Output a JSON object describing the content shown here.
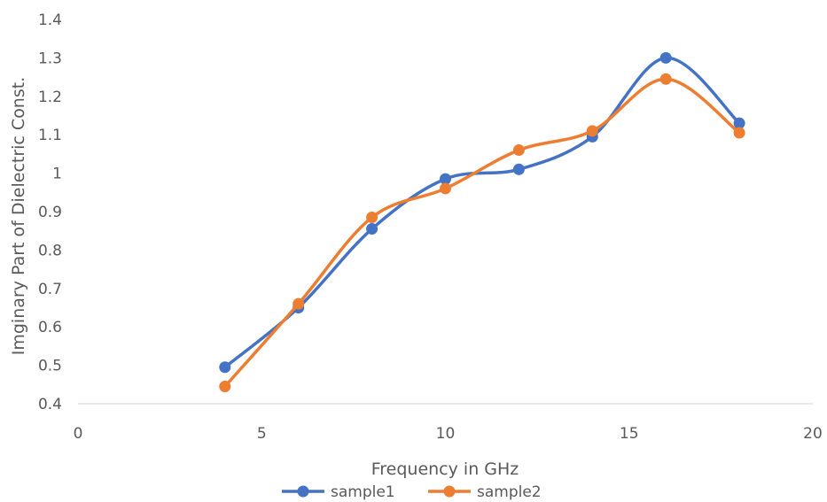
{
  "chart_data": {
    "type": "line",
    "smooth": true,
    "xlabel": "Frequency in GHz",
    "ylabel": "Imginary Part of Dielectric Const.",
    "xlim": [
      0,
      20
    ],
    "ylim": [
      0.4,
      1.4
    ],
    "xticks": [
      "0",
      "5",
      "10",
      "15",
      "20"
    ],
    "yticks": [
      "0.4",
      "0.5",
      "0.6",
      "0.7",
      "0.8",
      "0.9",
      "1",
      "1.1",
      "1.2",
      "1.3",
      "1.4"
    ],
    "grid": false,
    "legend_position": "bottom",
    "series": [
      {
        "name": "sample1",
        "color": "#4472C4",
        "x": [
          4,
          6,
          8,
          10,
          12,
          14,
          16,
          18
        ],
        "y": [
          0.495,
          0.65,
          0.855,
          0.985,
          1.01,
          1.095,
          1.3,
          1.13
        ]
      },
      {
        "name": "sample2",
        "color": "#ED7D31",
        "x": [
          4,
          6,
          8,
          10,
          12,
          14,
          16,
          18
        ],
        "y": [
          0.445,
          0.66,
          0.885,
          0.96,
          1.06,
          1.11,
          1.245,
          1.105
        ]
      }
    ]
  }
}
